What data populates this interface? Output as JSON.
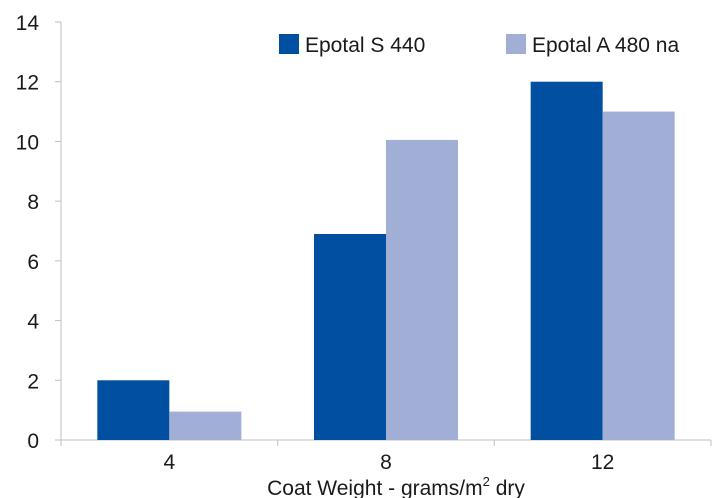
{
  "chart_data": {
    "type": "bar",
    "categories": [
      "4",
      "8",
      "12"
    ],
    "series": [
      {
        "name": "Epotal S 440",
        "values": [
          2,
          6.9,
          12
        ],
        "color": "#004fa0"
      },
      {
        "name": "Epotal A 480 na",
        "values": [
          0.95,
          10.05,
          11
        ],
        "color": "#a1afd7"
      }
    ],
    "y_ticks": [
      "0",
      "2",
      "4",
      "6",
      "8",
      "10",
      "12",
      "14"
    ],
    "ylim": [
      0,
      14
    ],
    "xlabel": {
      "main": "Coat Weight - grams/m",
      "sup": "2",
      "suffix": " dry"
    },
    "ylabel": "",
    "title": "",
    "grid": false,
    "legend_position": "top-right"
  }
}
